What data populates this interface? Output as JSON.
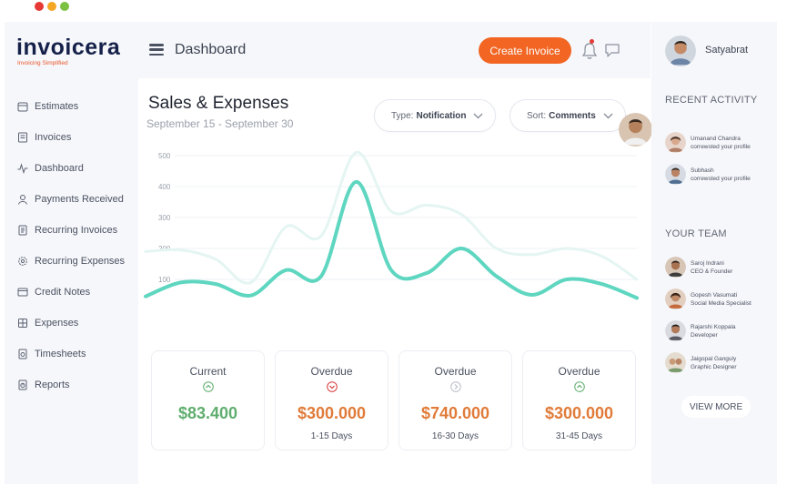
{
  "window": {
    "dots": [
      "#e53935",
      "#f5a623",
      "#7cc142"
    ]
  },
  "brand": {
    "name_pre": "i",
    "name_dot": "n",
    "name_post": "voicera",
    "tagline": "Invoicing Simplified"
  },
  "sidebar": {
    "items": [
      {
        "label": "Estimates",
        "icon": "calendar-icon"
      },
      {
        "label": "Invoices",
        "icon": "invoice-icon"
      },
      {
        "label": "Dashboard",
        "icon": "pulse-icon"
      },
      {
        "label": "Payments Received",
        "icon": "user-icon"
      },
      {
        "label": "Recurring Invoices",
        "icon": "document-icon"
      },
      {
        "label": "Recurring Expenses",
        "icon": "gear-icon"
      },
      {
        "label": "Credit Notes",
        "icon": "card-icon"
      },
      {
        "label": "Expenses",
        "icon": "receipt-icon"
      },
      {
        "label": "Timesheets",
        "icon": "timesheet-icon"
      },
      {
        "label": "Reports",
        "icon": "report-icon"
      }
    ]
  },
  "header": {
    "title": "Dashboard",
    "create_label": "Create Invoice"
  },
  "main": {
    "title": "Sales & Expenses",
    "subtitle": "September 15 - September 30",
    "filter_type": {
      "prefix": "Type:",
      "value": "Notification"
    },
    "filter_sort": {
      "prefix": "Sort:",
      "value": "Comments"
    }
  },
  "chart_data": {
    "type": "line",
    "yticks": [
      "500",
      "400",
      "300",
      "200",
      "100"
    ],
    "ylim": [
      0,
      500
    ],
    "grid": true,
    "series": [
      {
        "color": "#5ed6c0",
        "values": [
          45,
          90,
          85,
          48,
          130,
          110,
          415,
          130,
          120,
          200,
          110,
          50,
          100,
          85,
          40
        ]
      },
      {
        "color": "#e4f5f2",
        "values": [
          190,
          195,
          165,
          90,
          270,
          240,
          510,
          320,
          340,
          310,
          200,
          180,
          200,
          175,
          100
        ]
      }
    ]
  },
  "cards": [
    {
      "label": "Current",
      "amount": "$83.400",
      "days": "",
      "color": "#5fae6e",
      "icon": "chevron-up-circle-icon"
    },
    {
      "label": "Overdue",
      "amount": "$300.000",
      "days": "1-15 Days",
      "color": "#e07b39",
      "icon": "chevron-down-circle-icon"
    },
    {
      "label": "Overdue",
      "amount": "$740.000",
      "days": "16-30 Days",
      "color": "#e07b39",
      "icon": "chevron-right-circle-icon"
    },
    {
      "label": "Overdue",
      "amount": "$300.000",
      "days": "31-45 Days",
      "color": "#e07b39",
      "icon": "chevron-up-circle-icon"
    }
  ],
  "user": {
    "name": "Satyabrat"
  },
  "activity": {
    "title": "RECENT ACTIVITY",
    "items": [
      {
        "name": "Umanand Chandra",
        "text": "correwsted your profile"
      },
      {
        "name": "Subhash",
        "text": "correwsted your profile"
      }
    ]
  },
  "team": {
    "title": "YOUR TEAM",
    "members": [
      {
        "name": "Saroj Indrani",
        "role": "CEO & Founder"
      },
      {
        "name": "Gopesh Vasumati",
        "role": "Social Media Specialist"
      },
      {
        "name": "Rajarshi Koppala",
        "role": "Developer"
      },
      {
        "name": "Jaigopal Ganguly",
        "role": "Graphic Designer"
      }
    ],
    "view_more": "VIEW MORE"
  }
}
